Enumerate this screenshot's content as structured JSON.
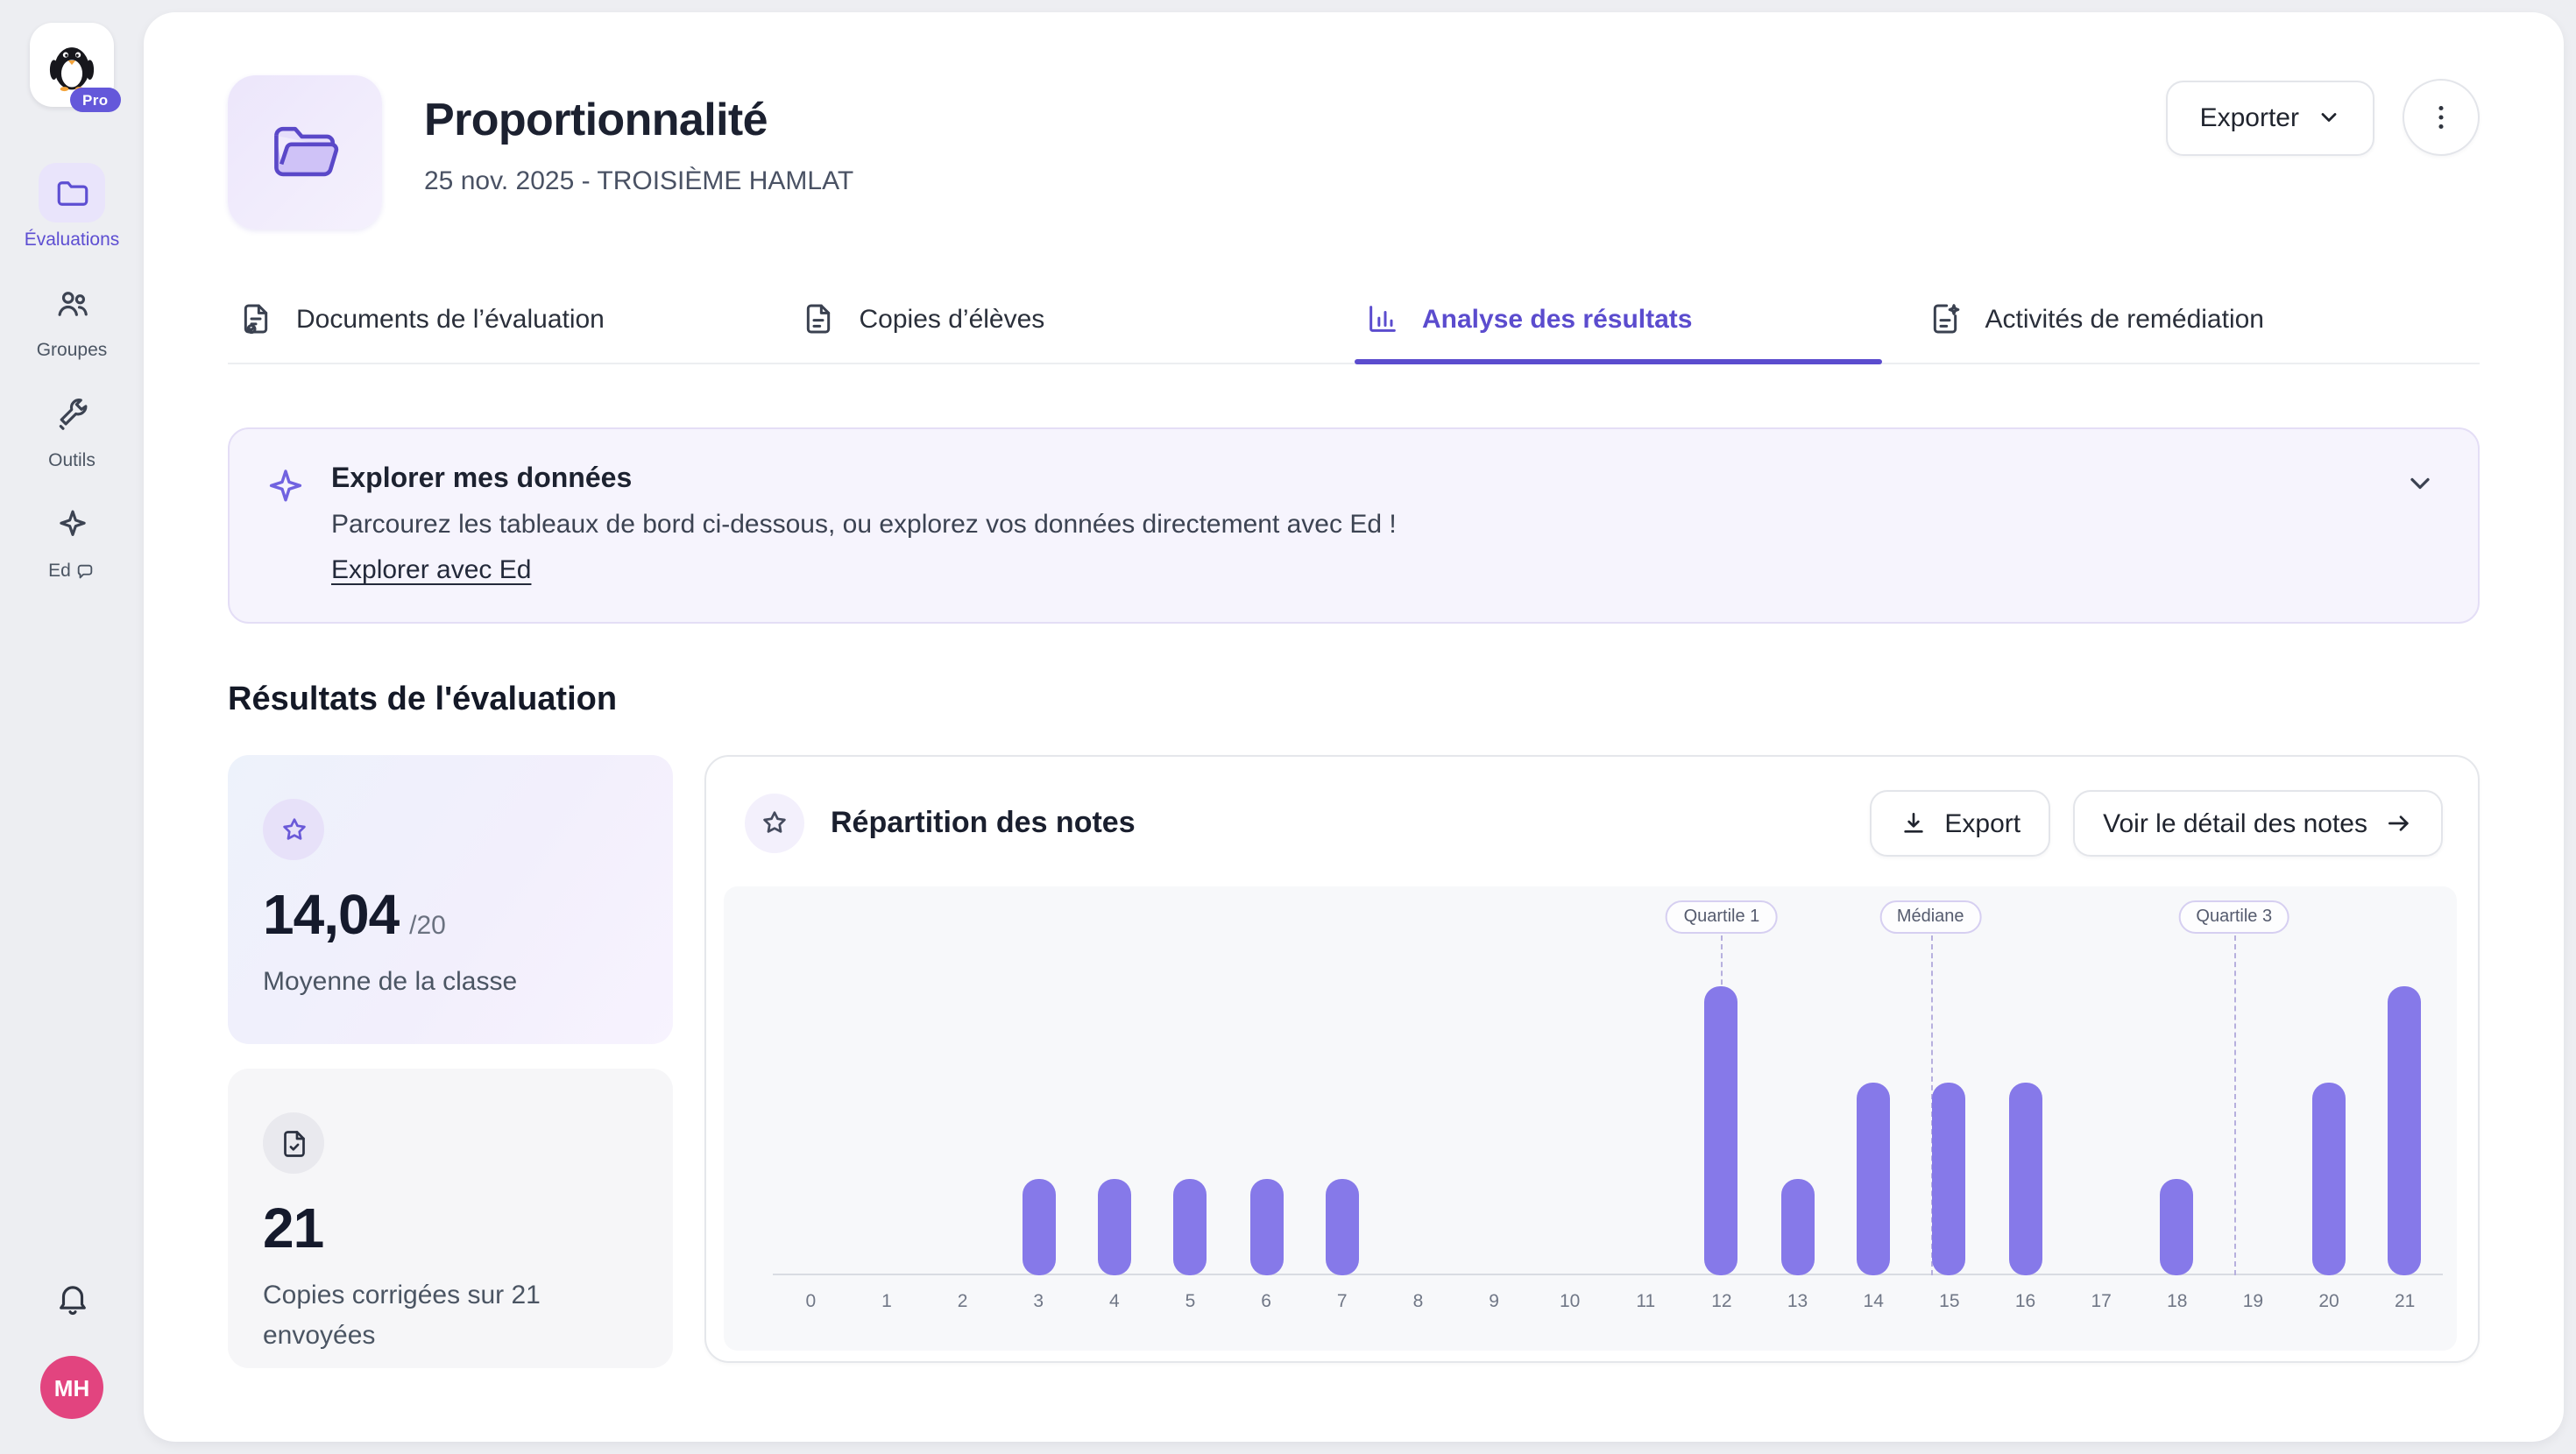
{
  "app": {
    "pro_badge": "Pro"
  },
  "sidebar": {
    "items": [
      {
        "id": "evaluations",
        "label": "Évaluations",
        "active": true
      },
      {
        "id": "groupes",
        "label": "Groupes",
        "active": false
      },
      {
        "id": "outils",
        "label": "Outils",
        "active": false
      },
      {
        "id": "ed",
        "label": "Ed",
        "active": false
      }
    ],
    "avatar_initials": "MH"
  },
  "header": {
    "title": "Proportionnalité",
    "subtitle": "25 nov. 2025 - TROISIÈME HAMLAT",
    "export_label": "Exporter"
  },
  "tabs": [
    {
      "label": "Documents de l’évaluation",
      "active": false
    },
    {
      "label": "Copies d’élèves",
      "active": false
    },
    {
      "label": "Analyse des résultats",
      "active": true
    },
    {
      "label": "Activités de remédiation",
      "active": false
    }
  ],
  "banner": {
    "title": "Explorer mes données",
    "body": "Parcourez les tableaux de bord ci-dessous, ou explorez vos données directement avec Ed !",
    "link_label": "Explorer avec Ed"
  },
  "results": {
    "section_title": "Résultats de l'évaluation",
    "average_card": {
      "value": "14,04",
      "suffix": "/20",
      "label": "Moyenne de la classe"
    },
    "copies_card": {
      "value": "21",
      "label": "Copies corrigées sur 21 envoyées"
    }
  },
  "chart_card": {
    "title": "Répartition des notes",
    "export_label": "Export",
    "detail_label": "Voir le détail des notes"
  },
  "chart_data": {
    "type": "bar",
    "title": "Répartition des notes",
    "categories": [
      0,
      1,
      2,
      3,
      4,
      5,
      6,
      7,
      8,
      9,
      10,
      11,
      12,
      13,
      14,
      15,
      16,
      17,
      18,
      19,
      20,
      21
    ],
    "values": [
      0,
      0,
      0,
      1,
      1,
      1,
      1,
      1,
      0,
      0,
      0,
      0,
      3,
      1,
      2,
      2,
      2,
      0,
      1,
      0,
      2,
      3
    ],
    "total_copies": 21,
    "mean": 14.04,
    "xlabel": "",
    "ylabel": "",
    "ylim": [
      0,
      3.5
    ],
    "grid": false,
    "legend": false,
    "markers": [
      {
        "label": "Quartile 1",
        "x": 12
      },
      {
        "label": "Médiane",
        "x": 14.75
      },
      {
        "label": "Quartile 3",
        "x": 18.75
      }
    ],
    "bar_color": "#8679e9"
  },
  "colors": {
    "accent": "#5b4cce",
    "bar": "#8679e9",
    "banner_bg": "#f6f4fd",
    "avatar": "#e2447f",
    "pro_badge": "#6458da"
  }
}
